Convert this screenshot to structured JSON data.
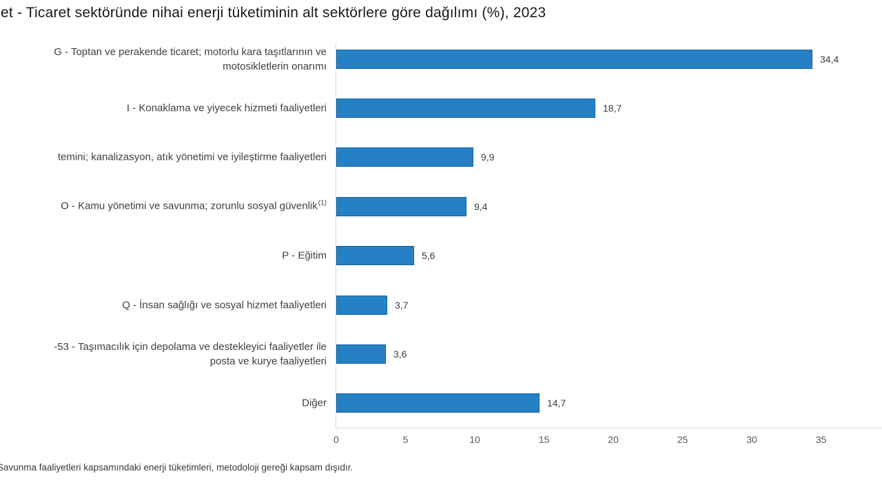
{
  "chart_data": {
    "type": "bar",
    "orientation": "horizontal",
    "title": "et - Ticaret sektöründe nihai enerji tüketiminin alt sektörlere göre dağılımı (%), 2023",
    "footnote": "Savunma faaliyetleri kapsamındaki enerji tüketimleri, metodoloji gereği kapsam dışıdır.",
    "xlim": [
      0,
      35
    ],
    "x_ticks": [
      "0",
      "5",
      "10",
      "15",
      "20",
      "25",
      "30",
      "35"
    ],
    "bars": [
      {
        "label": "G - Toptan ve perakende ticaret; motorlu kara taşıtlarının ve\nmotosikletlerin onarımı",
        "sup": "",
        "value": 34.4,
        "value_label": "34,4"
      },
      {
        "label": "I - Konaklama ve yiyecek hizmeti faaliyetleri",
        "sup": "",
        "value": 18.7,
        "value_label": "18,7"
      },
      {
        "label": "temini; kanalizasyon, atık yönetimi ve iyileştirme faaliyetleri",
        "sup": "",
        "value": 9.9,
        "value_label": "9,9"
      },
      {
        "label": "O - Kamu yönetimi ve savunma; zorunlu sosyal güvenlik",
        "sup": "(1)",
        "value": 9.4,
        "value_label": "9,4"
      },
      {
        "label": "P - Eğitim",
        "sup": "",
        "value": 5.6,
        "value_label": "5,6"
      },
      {
        "label": "Q - İnsan sağlığı ve sosyal hizmet faaliyetleri",
        "sup": "",
        "value": 3.7,
        "value_label": "3,7"
      },
      {
        "label": "-53 - Taşımacılık için depolama ve destekleyici faaliyetler ile\nposta ve kurye faaliyetleri",
        "sup": "",
        "value": 3.6,
        "value_label": "3,6"
      },
      {
        "label": "Diğer",
        "sup": "",
        "value": 14.7,
        "value_label": "14,7"
      }
    ],
    "colors": {
      "bar_fill": "#2581C3",
      "bar_border": "#1061A2",
      "axis_line": "#D9D9D9",
      "tick_text": "#595959",
      "label_text": "#404040",
      "title_text": "#181818"
    }
  }
}
